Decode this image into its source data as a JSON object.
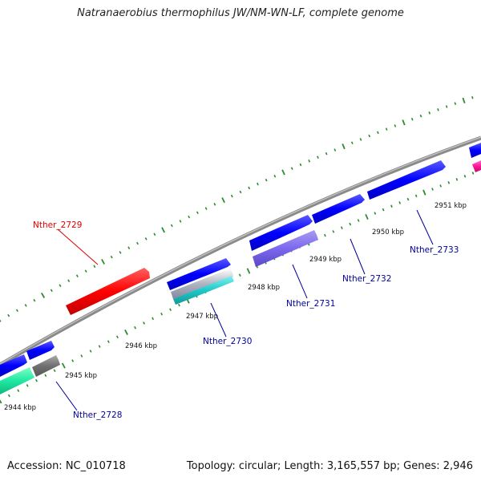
{
  "title": "Natranaerobius thermophilus JW/NM-WN-LF, complete genome",
  "footer": {
    "accession": "Accession: NC_010718",
    "summary": "Topology: circular; Length: 3,165,557 bp; Genes: 2,946"
  },
  "colors": {
    "backbone": "#8a8a8a",
    "tick": "#2e8b2e",
    "forward_gene": "#0000ff",
    "label_blue": "#00009a",
    "label_red": "#e00000"
  },
  "position_labels": [
    "2944 kbp",
    "2945 kbp",
    "2946 kbp",
    "2947 kbp",
    "2948 kbp",
    "2949 kbp",
    "2950 kbp",
    "2951 kbp"
  ],
  "gene_labels": [
    {
      "text": "Nther_2728",
      "color": "#00009a"
    },
    {
      "text": "Nther_2729",
      "color": "#e00000"
    },
    {
      "text": "Nther_2730",
      "color": "#00009a"
    },
    {
      "text": "Nther_2731",
      "color": "#00009a"
    },
    {
      "text": "Nther_2732",
      "color": "#00009a"
    },
    {
      "text": "Nther_2733",
      "color": "#00009a"
    }
  ]
}
